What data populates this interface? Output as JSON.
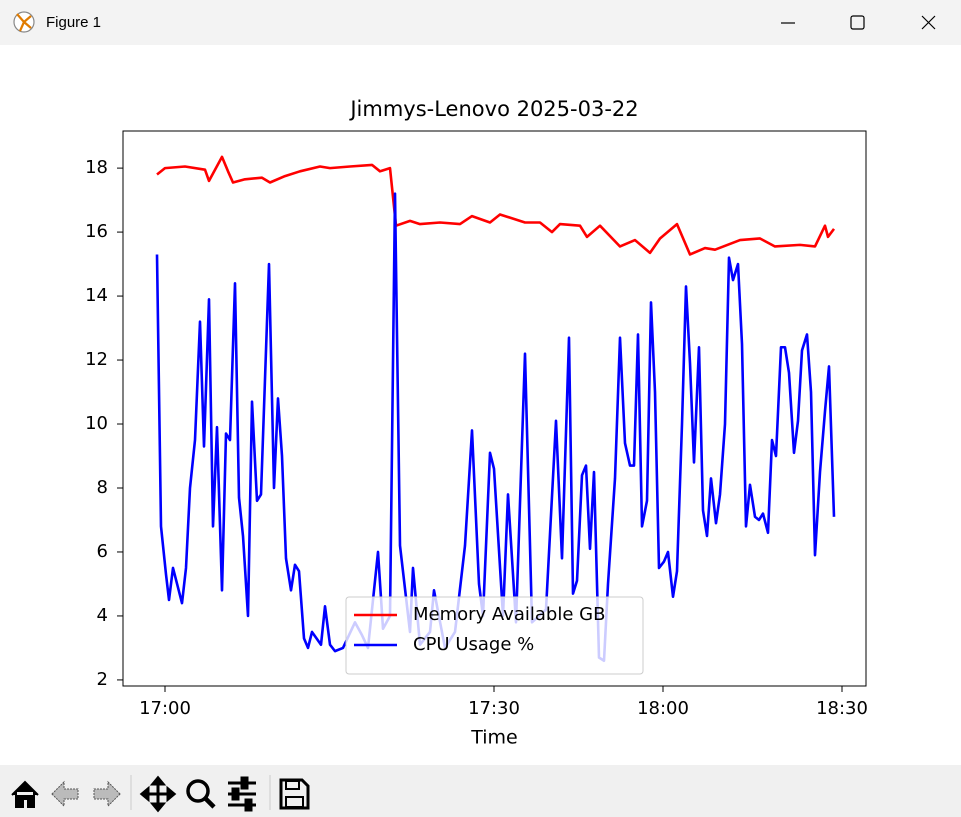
{
  "window": {
    "title": "Figure 1"
  },
  "chart_data": {
    "type": "line",
    "title": "Jimmys-Lenovo 2025-03-22",
    "x_label": "Time",
    "legend": "lower center",
    "grid": false,
    "xlim": [
      -34,
      709
    ],
    "xticks": [
      {
        "value": 8,
        "label": "17:00"
      },
      {
        "value": 337,
        "label": "17:30"
      },
      {
        "value": 506,
        "label": "18:00"
      },
      {
        "value": 685,
        "label": "18:30"
      }
    ],
    "ylim": [
      1.81,
      19.16
    ],
    "yticks": [
      2,
      4,
      6,
      8,
      10,
      12,
      14,
      16,
      18
    ],
    "series": [
      {
        "name": "Memory Available GB",
        "color": "#ff0000",
        "x": [
          0,
          8,
          28,
          48,
          52,
          65,
          71,
          76,
          88,
          105,
          113,
          128,
          143,
          163,
          173,
          193,
          215,
          223,
          233,
          239,
          253,
          263,
          283,
          303,
          315,
          333,
          343,
          368,
          383,
          395,
          403,
          423,
          430,
          443,
          463,
          478,
          493,
          503,
          520,
          533,
          548,
          558,
          583,
          603,
          618,
          643,
          658,
          668,
          671,
          677
        ],
        "values": [
          17.8,
          18.0,
          18.05,
          17.95,
          17.6,
          18.35,
          17.9,
          17.55,
          17.65,
          17.7,
          17.55,
          17.75,
          17.9,
          18.05,
          18.0,
          18.05,
          18.1,
          17.9,
          18.0,
          16.2,
          16.35,
          16.25,
          16.3,
          16.25,
          16.5,
          16.3,
          16.55,
          16.3,
          16.3,
          16.0,
          16.25,
          16.2,
          15.85,
          16.2,
          15.55,
          15.75,
          15.35,
          15.8,
          16.25,
          15.3,
          15.5,
          15.45,
          15.75,
          15.8,
          15.55,
          15.6,
          15.55,
          16.2,
          15.85,
          16.1
        ]
      },
      {
        "name": "CPU Usage %",
        "color": "#0000ff",
        "x": [
          0,
          4,
          9,
          12,
          16,
          25,
          29,
          33,
          38,
          43,
          47,
          52,
          56,
          60,
          65,
          69,
          73,
          78,
          82,
          86,
          91,
          95,
          100,
          104,
          112,
          117,
          121,
          125,
          129,
          134,
          138,
          142,
          147,
          151,
          155,
          164,
          168,
          173,
          178,
          186,
          198,
          205,
          211,
          221,
          226,
          233,
          238,
          243,
          253,
          256,
          263,
          273,
          277,
          288,
          298,
          308,
          315,
          322,
          326,
          333,
          337,
          346,
          351,
          359,
          368,
          375,
          389,
          399,
          405,
          412,
          416,
          420,
          425,
          429,
          433,
          437,
          442,
          447,
          451,
          458,
          463,
          468,
          473,
          477,
          481,
          485,
          490,
          494,
          498,
          502,
          507,
          511,
          516,
          520,
          525,
          529,
          533,
          537,
          542,
          546,
          550,
          554,
          559,
          563,
          568,
          572,
          576,
          581,
          585,
          589,
          593,
          598,
          602,
          606,
          611,
          615,
          619,
          624,
          628,
          632,
          637,
          641,
          645,
          650,
          654,
          658,
          663,
          668,
          672,
          677
        ],
        "values": [
          15.3,
          6.8,
          5.3,
          4.5,
          5.5,
          4.4,
          5.5,
          8,
          9.5,
          13.2,
          9.3,
          13.9,
          6.8,
          9.9,
          4.8,
          9.7,
          9.5,
          14.4,
          7.7,
          6.5,
          4.0,
          10.7,
          7.6,
          7.8,
          15.0,
          8.0,
          10.8,
          9,
          5.8,
          4.8,
          5.6,
          5.4,
          3.3,
          3.0,
          3.5,
          3.1,
          4.3,
          3.1,
          2.9,
          3.0,
          3.8,
          3.4,
          3.0,
          6.0,
          3.6,
          4.0,
          17.2,
          6.2,
          3.5,
          5.5,
          3.1,
          3.5,
          4.8,
          3.0,
          3.5,
          6.2,
          9.8,
          5.0,
          4.0,
          9.1,
          8.6,
          4.0,
          7.8,
          3.8,
          12.2,
          3.8,
          4.2,
          10.1,
          5.8,
          12.7,
          4.7,
          5.1,
          8.4,
          8.7,
          6.1,
          8.5,
          2.7,
          2.6,
          5.0,
          8.3,
          12.7,
          9.4,
          8.7,
          8.7,
          12.8,
          6.8,
          7.6,
          13.8,
          11.0,
          5.5,
          5.7,
          6.0,
          4.6,
          5.4,
          10.0,
          14.3,
          11.9,
          8.8,
          12.4,
          7.3,
          6.5,
          8.3,
          6.9,
          7.8,
          10.0,
          15.2,
          14.5,
          15.0,
          12.5,
          6.8,
          8.1,
          7.1,
          7.0,
          7.2,
          6.6,
          9.5,
          9.0,
          12.4,
          12.4,
          11.6,
          9.1,
          10.1,
          12.3,
          12.8,
          11.0,
          5.9,
          8.5,
          10.4,
          11.8,
          7.1
        ]
      }
    ]
  }
}
